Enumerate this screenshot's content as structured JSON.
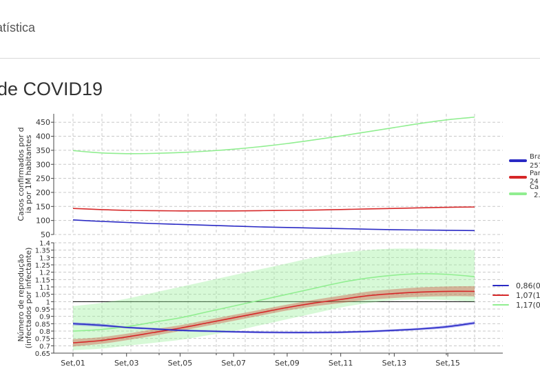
{
  "header": {
    "title": "atística"
  },
  "page": {
    "title": "de COVID19"
  },
  "chart_data": [
    {
      "type": "line",
      "ylabel": "Casos confirmados por dia por 1M habitantes",
      "ylim": [
        50,
        480
      ],
      "yticks": [
        50,
        100,
        150,
        200,
        250,
        300,
        350,
        400,
        450
      ],
      "x_range": [
        0,
        15
      ],
      "grid": true,
      "legend_placement": "right (clipped)",
      "legend": [
        "Bra",
        "257",
        "Par",
        "24",
        "Ca",
        "2."
      ],
      "series": [
        {
          "color": "#2929c4",
          "x": [
            0,
            1,
            2,
            3,
            4,
            5,
            6,
            7,
            8,
            9,
            10,
            11,
            12,
            13,
            14,
            15
          ],
          "values": [
            102,
            97,
            93,
            89,
            86,
            83,
            80,
            77,
            75,
            73,
            71,
            69,
            67,
            66,
            65,
            64
          ]
        },
        {
          "color": "#d62728",
          "x": [
            0,
            1,
            2,
            3,
            4,
            5,
            6,
            7,
            8,
            9,
            10,
            11,
            12,
            13,
            14,
            15
          ],
          "values": [
            143,
            139,
            136,
            135,
            134,
            134,
            134,
            135,
            136,
            137,
            139,
            141,
            143,
            145,
            147,
            148
          ]
        },
        {
          "color": "#90ee90",
          "x": [
            0,
            1,
            2,
            3,
            4,
            5,
            6,
            7,
            8,
            9,
            10,
            11,
            12,
            13,
            14,
            15
          ],
          "values": [
            349,
            341,
            338,
            339,
            342,
            347,
            354,
            363,
            374,
            387,
            401,
            416,
            431,
            446,
            459,
            468
          ]
        }
      ]
    },
    {
      "type": "line",
      "ylabel": "Número de reprodução (infectados por infectante)",
      "ylim": [
        0.65,
        1.4
      ],
      "yticks": [
        "0.65",
        "0.7",
        "0.75",
        "0.8",
        "0.85",
        "0.9",
        "0.95",
        "1",
        "1.05",
        "1.1",
        "1.15",
        "1.2",
        "1.25",
        "1.3",
        "1.35",
        "1.4"
      ],
      "x_range": [
        0,
        15
      ],
      "xticks": [
        "Set,01",
        "Set,03",
        "Set,05",
        "Set,07",
        "Set,09",
        "Set,11",
        "Set,13",
        "Set,15"
      ],
      "grid": true,
      "reference_line": 1,
      "legend_placement": "right (clipped)",
      "legend": [
        "0,86(0",
        "1,07(1",
        "1,17(0"
      ],
      "series": [
        {
          "color": "#2929c4",
          "x": [
            0,
            1,
            2,
            3,
            4,
            5,
            6,
            7,
            8,
            9,
            10,
            11,
            12,
            13,
            14,
            15
          ],
          "values": [
            0.85,
            0.84,
            0.825,
            0.815,
            0.805,
            0.8,
            0.795,
            0.792,
            0.79,
            0.79,
            0.792,
            0.797,
            0.805,
            0.815,
            0.83,
            0.855
          ],
          "lower": [
            0.84,
            0.83,
            0.818,
            0.808,
            0.798,
            0.793,
            0.788,
            0.785,
            0.783,
            0.783,
            0.785,
            0.79,
            0.797,
            0.807,
            0.82,
            0.845
          ],
          "upper": [
            0.86,
            0.85,
            0.832,
            0.822,
            0.812,
            0.807,
            0.802,
            0.799,
            0.797,
            0.797,
            0.799,
            0.804,
            0.813,
            0.823,
            0.84,
            0.865
          ]
        },
        {
          "color": "#d62728",
          "x": [
            0,
            1,
            2,
            3,
            4,
            5,
            6,
            7,
            8,
            9,
            10,
            11,
            12,
            13,
            14,
            15
          ],
          "values": [
            0.72,
            0.735,
            0.76,
            0.79,
            0.82,
            0.855,
            0.89,
            0.925,
            0.96,
            0.99,
            1.015,
            1.04,
            1.055,
            1.065,
            1.07,
            1.07
          ],
          "lower": [
            0.695,
            0.712,
            0.738,
            0.768,
            0.8,
            0.835,
            0.87,
            0.905,
            0.94,
            0.968,
            0.99,
            1.012,
            1.025,
            1.033,
            1.037,
            1.035
          ],
          "upper": [
            0.745,
            0.758,
            0.782,
            0.812,
            0.84,
            0.875,
            0.91,
            0.945,
            0.98,
            1.012,
            1.04,
            1.068,
            1.085,
            1.097,
            1.103,
            1.105
          ]
        },
        {
          "color": "#90ee90",
          "x": [
            0,
            1,
            2,
            3,
            4,
            5,
            6,
            7,
            8,
            9,
            10,
            11,
            12,
            13,
            14,
            15
          ],
          "values": [
            0.8,
            0.81,
            0.83,
            0.86,
            0.89,
            0.93,
            0.97,
            1.01,
            1.05,
            1.09,
            1.13,
            1.16,
            1.18,
            1.19,
            1.185,
            1.17
          ],
          "lower": [
            0.67,
            0.68,
            0.7,
            0.72,
            0.74,
            0.77,
            0.8,
            0.84,
            0.88,
            0.92,
            0.96,
            0.99,
            1.01,
            1.015,
            1.01,
            1.0
          ],
          "upper": [
            0.97,
            0.99,
            1.02,
            1.06,
            1.1,
            1.14,
            1.18,
            1.22,
            1.26,
            1.3,
            1.33,
            1.35,
            1.36,
            1.36,
            1.355,
            1.35
          ]
        }
      ]
    }
  ]
}
